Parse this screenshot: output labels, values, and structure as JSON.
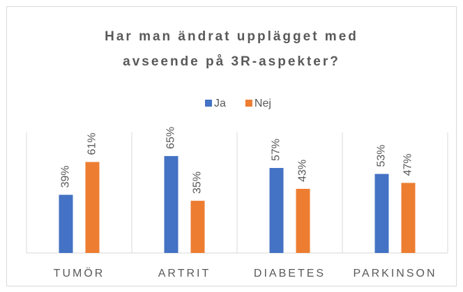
{
  "chart_data": {
    "type": "bar",
    "title": "Har man ändrat upplägget med avseende på 3R-aspekter?",
    "categories": [
      "TUMÖR",
      "ARTRIT",
      "DIABETES",
      "PARKINSON"
    ],
    "series": [
      {
        "name": "Ja",
        "color": "#4472c4",
        "values": [
          39,
          65,
          57,
          53
        ],
        "value_labels": [
          "39%",
          "65%",
          "57%",
          "53%"
        ]
      },
      {
        "name": "Nej",
        "color": "#ed7d31",
        "values": [
          61,
          35,
          43,
          47
        ],
        "value_labels": [
          "61%",
          "35%",
          "43%",
          "47%"
        ]
      }
    ],
    "ylim": [
      0,
      100
    ],
    "legend": "top"
  }
}
